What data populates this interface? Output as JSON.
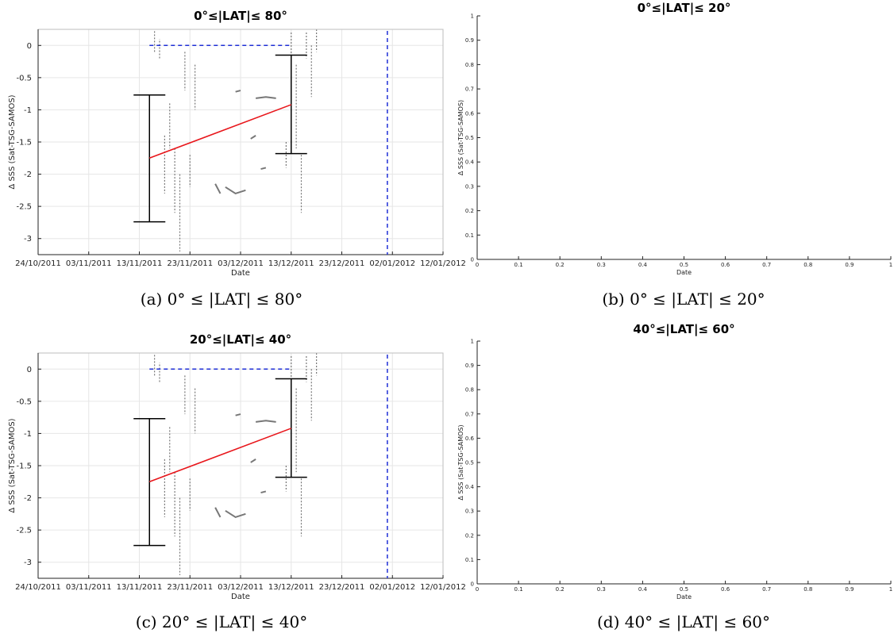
{
  "chart_data": [
    {
      "id": "a",
      "type": "scatter",
      "title": "0°≤|LAT|≤ 80°",
      "caption": "(a) 0° ≤ |LAT| ≤ 80°",
      "xlabel": "Date",
      "ylabel": "Δ SSS (Sat-TSG-SAMOS)",
      "x_ticks": [
        "24/10/2011",
        "03/11/2011",
        "13/11/2011",
        "23/11/2011",
        "03/12/2011",
        "13/12/2011",
        "23/12/2011",
        "02/01/2012",
        "12/01/2012"
      ],
      "xlim": [
        "2011-10-24",
        "2012-01-12"
      ],
      "y_ticks": [
        "0",
        "-0.5",
        "-1",
        "-1.5",
        "-2",
        "-2.5",
        "-3"
      ],
      "ylim": [
        -3.25,
        0.25
      ],
      "grid": true,
      "trend_line": {
        "x": [
          "2011-11-15",
          "2011-12-13"
        ],
        "y": [
          -1.75,
          -0.92
        ]
      },
      "error_bars": [
        {
          "x": "2011-11-15",
          "low": -2.74,
          "high": -0.77
        },
        {
          "x": "2011-12-13",
          "low": -1.68,
          "high": -0.15
        }
      ],
      "blue_dashed_h": {
        "x": [
          "2011-11-15",
          "2011-12-13"
        ],
        "y": 0
      },
      "blue_dashed_v": {
        "x": "2012-01-01"
      },
      "colors": {
        "trend": "#e8161b",
        "error": "#000000",
        "ref": "#1f2fd6",
        "data": "#777777"
      }
    },
    {
      "id": "b",
      "type": "scatter",
      "title": "0°≤|LAT|≤ 20°",
      "caption": "(b) 0° ≤ |LAT| ≤ 20°",
      "xlabel": "Date",
      "ylabel": "Δ SSS (Sat-TSG-SAMOS)",
      "x_ticks": [
        "0",
        "0.1",
        "0.2",
        "0.3",
        "0.4",
        "0.5",
        "0.6",
        "0.7",
        "0.8",
        "0.9",
        "1"
      ],
      "y_ticks": [
        "0",
        "0.1",
        "0.2",
        "0.3",
        "0.4",
        "0.5",
        "0.6",
        "0.7",
        "0.8",
        "0.9",
        "1"
      ],
      "xlim": [
        0,
        1
      ],
      "ylim": [
        0,
        1
      ],
      "grid": false
    },
    {
      "id": "c",
      "type": "scatter",
      "title": "20°≤|LAT|≤ 40°",
      "caption": "(c) 20° ≤ |LAT| ≤ 40°",
      "xlabel": "Date",
      "ylabel": "Δ SSS (Sat-TSG-SAMOS)",
      "x_ticks": [
        "24/10/2011",
        "03/11/2011",
        "13/11/2011",
        "23/11/2011",
        "03/12/2011",
        "13/12/2011",
        "23/12/2011",
        "02/01/2012",
        "12/01/2012"
      ],
      "xlim": [
        "2011-10-24",
        "2012-01-12"
      ],
      "y_ticks": [
        "0",
        "-0.5",
        "-1",
        "-1.5",
        "-2",
        "-2.5",
        "-3"
      ],
      "ylim": [
        -3.25,
        0.25
      ],
      "grid": true,
      "trend_line": {
        "x": [
          "2011-11-15",
          "2011-12-13"
        ],
        "y": [
          -1.75,
          -0.92
        ]
      },
      "error_bars": [
        {
          "x": "2011-11-15",
          "low": -2.74,
          "high": -0.77
        },
        {
          "x": "2011-12-13",
          "low": -1.68,
          "high": -0.15
        }
      ],
      "blue_dashed_h": {
        "x": [
          "2011-11-15",
          "2011-12-13"
        ],
        "y": 0
      },
      "blue_dashed_v": {
        "x": "2012-01-01"
      },
      "colors": {
        "trend": "#e8161b",
        "error": "#000000",
        "ref": "#1f2fd6",
        "data": "#777777"
      }
    },
    {
      "id": "d",
      "type": "scatter",
      "title": "40°≤|LAT|≤ 60°",
      "caption": "(d) 40° ≤ |LAT| ≤ 60°",
      "xlabel": "Date",
      "ylabel": "Δ SSS (Sat-TSG-SAMOS)",
      "x_ticks": [
        "0",
        "0.1",
        "0.2",
        "0.3",
        "0.4",
        "0.5",
        "0.6",
        "0.7",
        "0.8",
        "0.9",
        "1"
      ],
      "y_ticks": [
        "0",
        "0.1",
        "0.2",
        "0.3",
        "0.4",
        "0.5",
        "0.6",
        "0.7",
        "0.8",
        "0.9",
        "1"
      ],
      "xlim": [
        0,
        1
      ],
      "ylim": [
        0,
        1
      ],
      "grid": false
    }
  ]
}
